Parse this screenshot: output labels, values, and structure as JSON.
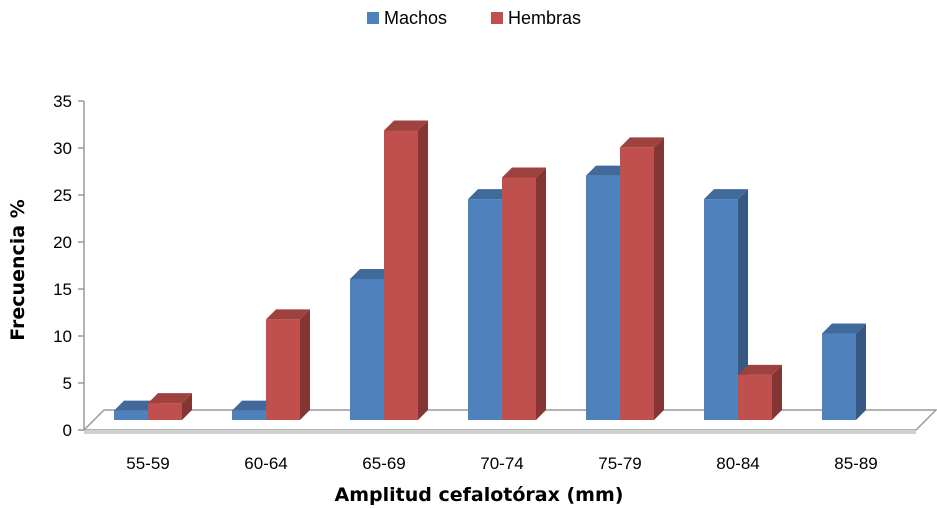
{
  "chart_data": {
    "type": "bar",
    "categories": [
      "55-59",
      "60-64",
      "65-69",
      "70-74",
      "75-79",
      "80-84",
      "85-89"
    ],
    "series": [
      {
        "name": "Machos",
        "values": [
          1,
          1,
          15,
          23.5,
          26,
          23.5,
          9.2
        ],
        "color": "#4F81BD"
      },
      {
        "name": "Hembras",
        "values": [
          1.8,
          10.7,
          30.8,
          25.8,
          29,
          4.8,
          0
        ],
        "color": "#C0504D"
      }
    ],
    "title": "",
    "xlabel": "Amplitud cefalotórax (mm)",
    "ylabel": "Frecuencia %",
    "ylim": [
      0,
      35
    ],
    "yticks": [
      0,
      5,
      10,
      15,
      20,
      25,
      30,
      35
    ],
    "legend": "top-center",
    "grid": false,
    "style": "3d-column"
  }
}
